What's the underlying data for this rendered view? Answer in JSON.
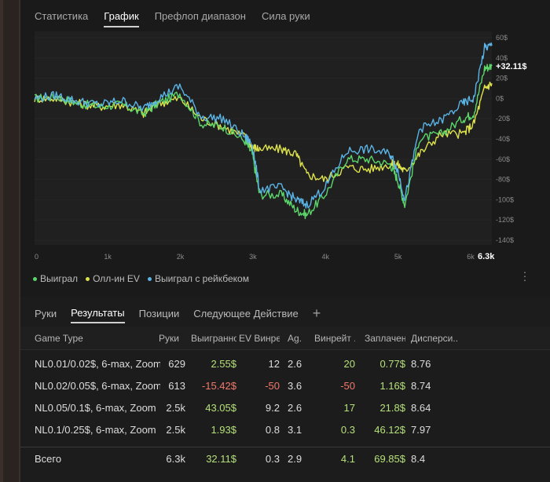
{
  "top_tabs": [
    "Статистика",
    "График",
    "Префлоп диапазон",
    "Сила руки"
  ],
  "active_top_tab": 1,
  "chart_data": {
    "type": "line",
    "x_ticks": [
      "0",
      "1k",
      "2k",
      "3k",
      "4k",
      "5k",
      "6k"
    ],
    "x_end_label": "6.3k",
    "y_ticks": [
      "60$",
      "40$",
      "20$",
      "0$",
      "-20$",
      "-40$",
      "-60$",
      "-80$",
      "-100$",
      "-120$",
      "-140$"
    ],
    "end_value_label": "+32.11$",
    "xlim": [
      0,
      6300
    ],
    "ylim": [
      -140,
      60
    ],
    "series": [
      {
        "name": "Выиграл",
        "color": "#5bd66a",
        "x": [
          0,
          300,
          600,
          900,
          1200,
          1500,
          1700,
          2000,
          2300,
          2600,
          2900,
          3000,
          3100,
          3400,
          3600,
          3750,
          4000,
          4300,
          4600,
          4900,
          5000,
          5100,
          5300,
          5600,
          5900,
          6050,
          6200,
          6300
        ],
        "y": [
          0,
          2,
          -5,
          -8,
          -6,
          -15,
          -5,
          5,
          -25,
          -28,
          -42,
          -55,
          -95,
          -95,
          -110,
          -115,
          -95,
          -60,
          -60,
          -65,
          -80,
          -105,
          -40,
          -35,
          -20,
          -15,
          30,
          32.11
        ]
      },
      {
        "name": "Олл-ин EV",
        "color": "#dde24c",
        "x": [
          0,
          300,
          600,
          900,
          1200,
          1500,
          1700,
          2000,
          2300,
          2600,
          2900,
          3000,
          3100,
          3400,
          3600,
          3750,
          4000,
          4300,
          4600,
          4900,
          5000,
          5100,
          5300,
          5600,
          5900,
          6050,
          6200,
          6300
        ],
        "y": [
          0,
          0,
          -5,
          -8,
          -6,
          -15,
          -5,
          0,
          -20,
          -28,
          -38,
          -48,
          -50,
          -50,
          -55,
          -75,
          -80,
          -68,
          -70,
          -65,
          -65,
          -72,
          -55,
          -35,
          -35,
          -25,
          10,
          15
        ]
      },
      {
        "name": "Выиграл с рейкбеком",
        "color": "#5ab4e6",
        "x": [
          0,
          300,
          600,
          900,
          1200,
          1500,
          1700,
          2000,
          2300,
          2600,
          2900,
          3000,
          3100,
          3400,
          3600,
          3750,
          4000,
          4300,
          4600,
          4900,
          5000,
          5100,
          5300,
          5600,
          5900,
          6050,
          6200,
          6300
        ],
        "y": [
          0,
          3,
          -3,
          -6,
          -2,
          -10,
          0,
          12,
          -18,
          -20,
          -38,
          -45,
          -90,
          -88,
          -100,
          -105,
          -88,
          -52,
          -50,
          -55,
          -70,
          -100,
          -30,
          -22,
          -5,
          0,
          50,
          52
        ]
      }
    ]
  },
  "legend": [
    "Выиграл",
    "Олл-ин EV",
    "Выиграл с рейкбеком"
  ],
  "kebab_icon": "more-vertical-icon",
  "table_tabs": [
    "Руки",
    "Результаты",
    "Позиции",
    "Следующее Действие"
  ],
  "active_table_tab": 1,
  "plus_label": "+",
  "columns": [
    "Game Type",
    "Руки",
    "Выигранно",
    "EV Винре...",
    "Ag.",
    "Винрейт ...",
    "Заплачен...",
    "Дисперси..."
  ],
  "rows": [
    {
      "game": "NL0.01/0.02$, 6-max, Zoom",
      "hands": "629",
      "won": "2.55$",
      "won_sign": "pos",
      "ev": "12",
      "ag": "2.6",
      "wr": "20",
      "wr_sign": "pos",
      "paid": "0.77$",
      "var": "8.76"
    },
    {
      "game": "NL0.02/0.05$, 6-max, Zoom",
      "hands": "613",
      "won": "-15.42$",
      "won_sign": "neg",
      "ev": "-50",
      "ag": "3.6",
      "wr": "-50",
      "wr_sign": "neg",
      "paid": "1.16$",
      "var": "8.74"
    },
    {
      "game": "NL0.05/0.1$, 6-max, Zoom",
      "hands": "2.5k",
      "won": "43.05$",
      "won_sign": "pos",
      "ev": "9.2",
      "ag": "2.6",
      "wr": "17",
      "wr_sign": "pos",
      "paid": "21.8$",
      "var": "8.64"
    },
    {
      "game": "NL0.1/0.25$, 6-max, Zoom",
      "hands": "2.5k",
      "won": "1.93$",
      "won_sign": "pos",
      "ev": "0.8",
      "ag": "3.1",
      "wr": "0.3",
      "wr_sign": "pos",
      "paid": "46.12$",
      "var": "7.97"
    }
  ],
  "total": {
    "game": "Всего",
    "hands": "6.3k",
    "won": "32.11$",
    "won_sign": "pos",
    "ev": "0.3",
    "ag": "2.9",
    "wr": "4.1",
    "wr_sign": "pos",
    "paid": "69.85$",
    "var": "8.4"
  }
}
